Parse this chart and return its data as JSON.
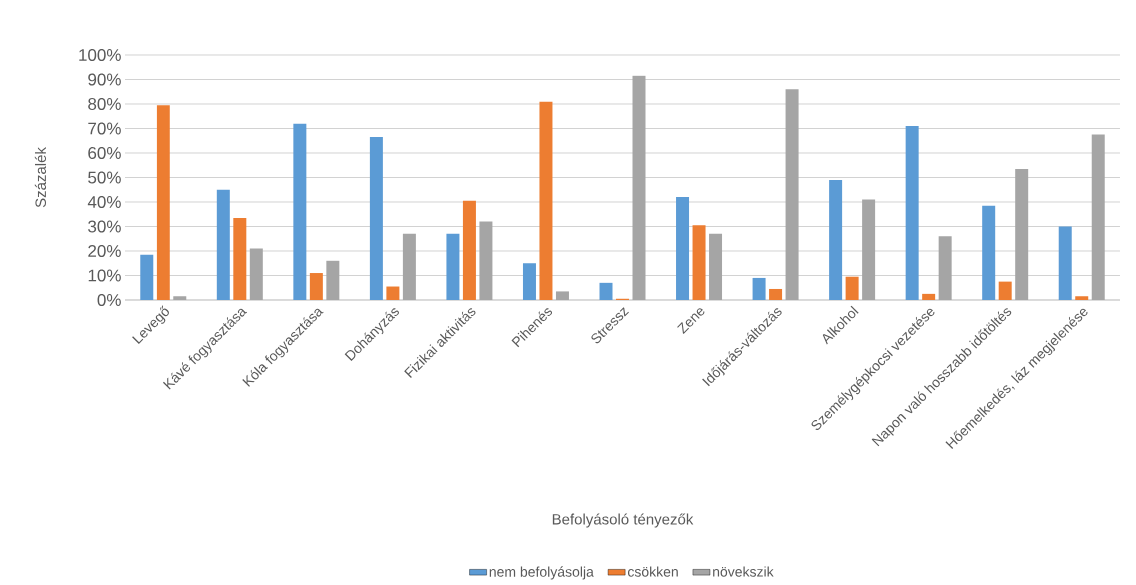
{
  "chart_data": {
    "type": "bar",
    "xlabel": "Befolyásoló tényezők",
    "ylabel": "Százalék",
    "categories": [
      "Levegő",
      "Kávé fogyasztása",
      "Kóla fogyasztása",
      "Dohányzás",
      "Fizikai aktivitás",
      "Pihenés",
      "Stressz",
      "Zene",
      "Időjárás-változás",
      "Alkohol",
      "Személygépkocsi vezetése",
      "Napon való hosszabb időtöltés",
      "Hőemelkedés, láz megjelenése"
    ],
    "series": [
      {
        "name": "nem befolyásolja",
        "color": "#5b9bd5",
        "values": [
          18.5,
          45,
          72,
          66.5,
          27,
          15,
          7,
          42,
          9,
          49,
          71,
          38.5,
          30
        ]
      },
      {
        "name": "csökken",
        "color": "#ed7d31",
        "values": [
          79.5,
          33.5,
          11,
          5.5,
          40.5,
          81,
          0.5,
          30.5,
          4.5,
          9.5,
          2.5,
          7.5,
          1.5
        ]
      },
      {
        "name": "növekszik",
        "color": "#a5a5a5",
        "values": [
          1.5,
          21,
          16,
          27,
          32,
          3.5,
          91.5,
          27,
          86,
          41,
          26,
          53.5,
          67.5
        ]
      }
    ],
    "ylim": [
      0,
      100
    ],
    "yticks": [
      {
        "value": 0,
        "label": "0%"
      },
      {
        "value": 10,
        "label": "10%"
      },
      {
        "value": 20,
        "label": "20%"
      },
      {
        "value": 30,
        "label": "30%"
      },
      {
        "value": 40,
        "label": "40%"
      },
      {
        "value": 50,
        "label": "50%"
      },
      {
        "value": 60,
        "label": "60%"
      },
      {
        "value": 70,
        "label": "70%"
      },
      {
        "value": 80,
        "label": "80%"
      },
      {
        "value": 90,
        "label": "90%"
      },
      {
        "value": 100,
        "label": "100%"
      }
    ],
    "grid": "y",
    "legend": "bottom"
  }
}
